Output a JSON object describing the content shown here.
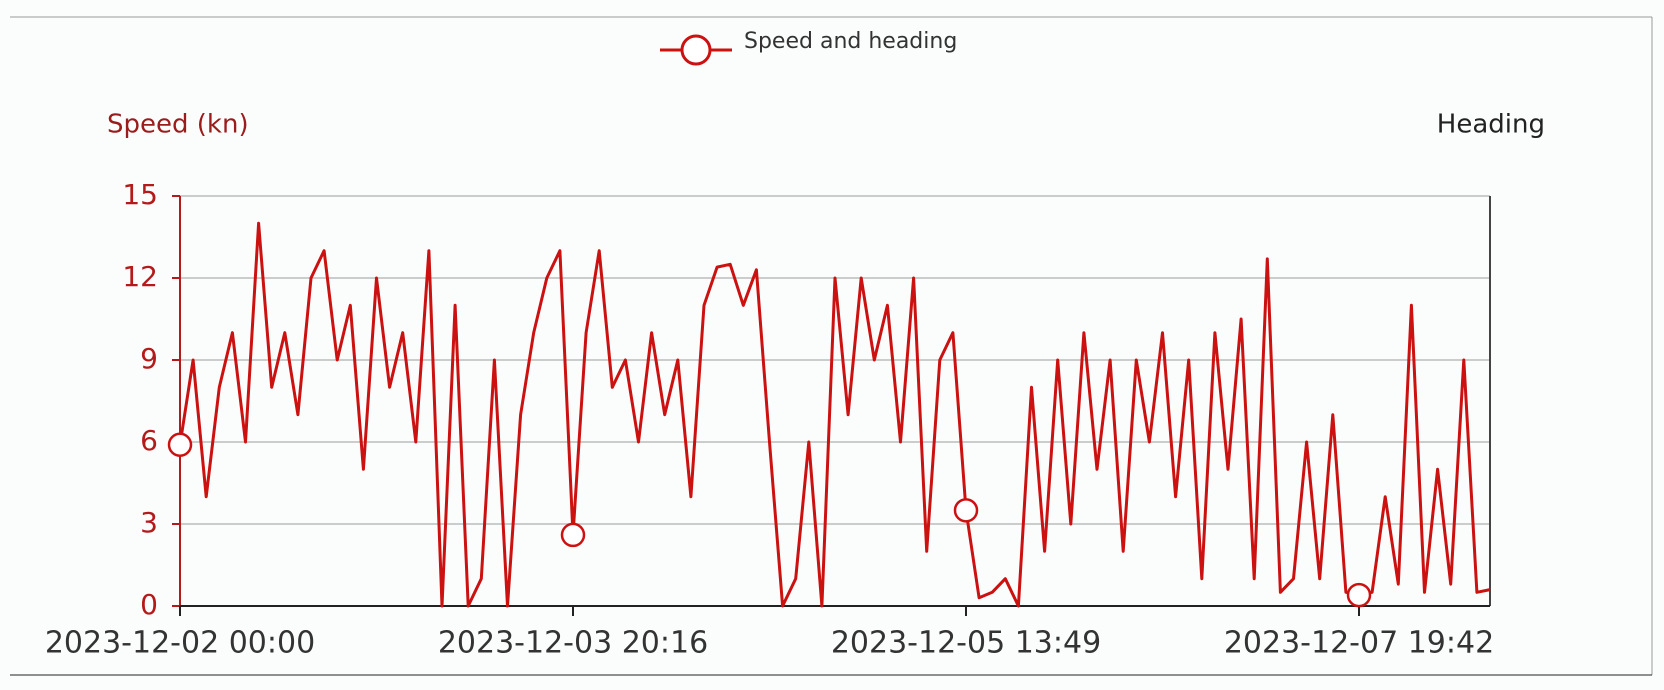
{
  "chart_data": {
    "type": "line",
    "legend": "Speed and heading",
    "y_label": "Speed (kn)",
    "y2_label": "Heading",
    "categories": [
      "2023-12-02 00:00",
      null,
      null,
      null,
      null,
      null,
      null,
      null,
      null,
      null,
      null,
      null,
      null,
      null,
      null,
      null,
      null,
      null,
      null,
      null,
      null,
      null,
      null,
      null,
      null,
      null,
      null,
      null,
      null,
      null,
      "2023-12-03 20:16",
      null,
      null,
      null,
      null,
      null,
      null,
      null,
      null,
      null,
      null,
      null,
      null,
      null,
      null,
      null,
      null,
      null,
      null,
      null,
      null,
      null,
      null,
      null,
      null,
      null,
      null,
      null,
      null,
      null,
      "2023-12-05 13:49",
      null,
      null,
      null,
      null,
      null,
      null,
      null,
      null,
      null,
      null,
      null,
      null,
      null,
      null,
      null,
      null,
      null,
      null,
      null,
      null,
      null,
      null,
      null,
      null,
      null,
      null,
      null,
      null,
      null,
      "2023-12-07 19:42",
      null,
      null,
      null,
      null,
      null,
      null,
      null,
      null,
      null,
      null
    ],
    "series": [
      {
        "name": "Speed and heading",
        "color": "#cc1111",
        "values": [
          5.9,
          9,
          4,
          8,
          10,
          6,
          14,
          8,
          10,
          7,
          12,
          13,
          9,
          11,
          5,
          12,
          8,
          10,
          6,
          13,
          0,
          11,
          0,
          1,
          9,
          0,
          7,
          10,
          12,
          13,
          2.6,
          10,
          13,
          8,
          9,
          6,
          10,
          7,
          9,
          4,
          11,
          12.4,
          12.5,
          11,
          12.3,
          6,
          0,
          1,
          6,
          0,
          12,
          7,
          12,
          9,
          11,
          6,
          12,
          2,
          9,
          10,
          3.5,
          0.3,
          0.5,
          1,
          0,
          8,
          2,
          9,
          3,
          10,
          5,
          9,
          2,
          9,
          6,
          10,
          4,
          9,
          1,
          10,
          5,
          10.5,
          1,
          12.7,
          0.5,
          1,
          6,
          1,
          7,
          0.5,
          0.4,
          0.5,
          4,
          0.8,
          11,
          0.5,
          5,
          0.8,
          9,
          0.5,
          0.6
        ]
      }
    ],
    "ylim": [
      0,
      15
    ],
    "yticks": [
      0,
      3,
      6,
      9,
      12,
      15
    ],
    "grid": true
  }
}
